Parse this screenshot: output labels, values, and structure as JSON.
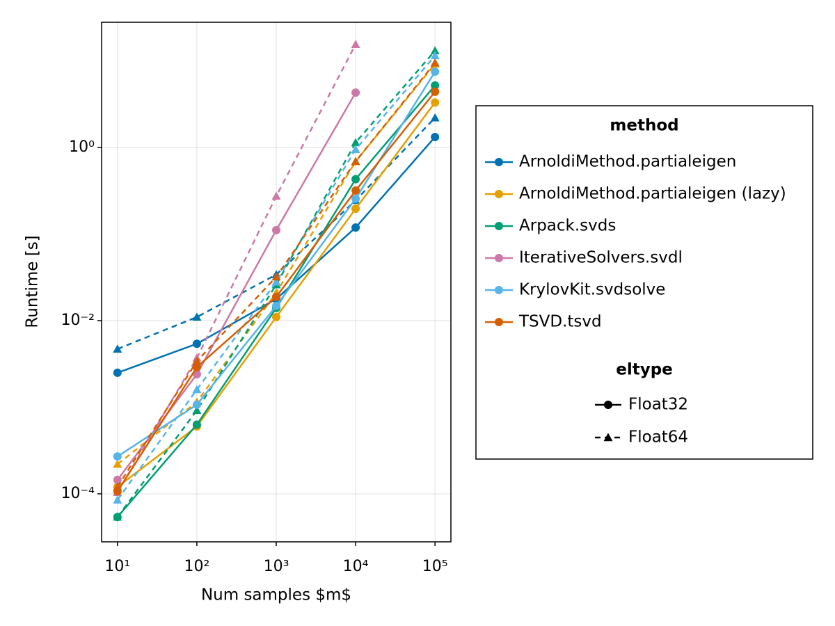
{
  "chart_data": {
    "type": "line",
    "x_label": "Num samples $m$",
    "y_label": "Runtime [s]",
    "xscale": "log",
    "yscale": "log",
    "grid": true,
    "x": [
      10,
      100,
      1000,
      10000,
      100000
    ],
    "xlim": [
      6.31,
      158489
    ],
    "ylim": [
      2.79e-05,
      27.9
    ],
    "xticks": [
      {
        "value": 10,
        "label": "10¹"
      },
      {
        "value": 100,
        "label": "10²"
      },
      {
        "value": 1000,
        "label": "10³"
      },
      {
        "value": 10000,
        "label": "10⁴"
      },
      {
        "value": 100000,
        "label": "10⁵"
      }
    ],
    "yticks": [
      {
        "value": 0.0001,
        "label": "10⁻⁴"
      },
      {
        "value": 0.01,
        "label": "10⁻²"
      },
      {
        "value": 1,
        "label": "10⁰"
      }
    ],
    "legend_title": "method",
    "eltype_title": "eltype",
    "eltypes": [
      "Float32",
      "Float64"
    ],
    "series": [
      {
        "name": "ArnoldiMethod.partialeigen",
        "color": "#0072b2",
        "float32": [
          0.0025,
          0.0054,
          0.0178,
          0.119,
          1.32
        ],
        "float64": [
          0.0047,
          0.011,
          0.034,
          0.245,
          2.2
        ]
      },
      {
        "name": "ArnoldiMethod.partialeigen (lazy)",
        "color": "#e69f00",
        "float32": [
          0.00012,
          0.0006,
          0.011,
          0.196,
          3.3
        ],
        "float64": [
          0.00022,
          0.00115,
          0.021,
          0.69,
          9.2
        ]
      },
      {
        "name": "Arpack.svds",
        "color": "#009e73",
        "float32": [
          5.4e-05,
          0.00063,
          0.014,
          0.43,
          5.2
        ],
        "float64": [
          5.4e-05,
          0.00092,
          0.026,
          1.14,
          13.1
        ]
      },
      {
        "name": "IterativeSolvers.svdl",
        "color": "#cc79a7",
        "float32": [
          0.000145,
          0.0024,
          0.111,
          4.3,
          null
        ],
        "float64": [
          0.000104,
          0.0037,
          0.274,
          15.5,
          null
        ]
      },
      {
        "name": "KrylovKit.svdsolve",
        "color": "#56b4e9",
        "float32": [
          0.00027,
          0.00107,
          0.0148,
          0.255,
          7.5
        ],
        "float64": [
          8.5e-05,
          0.0016,
          0.028,
          0.95,
          11.5
        ]
      },
      {
        "name": "TSVD.tsvd",
        "color": "#d55e00",
        "float32": [
          0.000107,
          0.0029,
          0.0188,
          0.318,
          4.4
        ],
        "float64": [
          0.00012,
          0.0034,
          0.032,
          0.69,
          9.5
        ]
      }
    ]
  }
}
